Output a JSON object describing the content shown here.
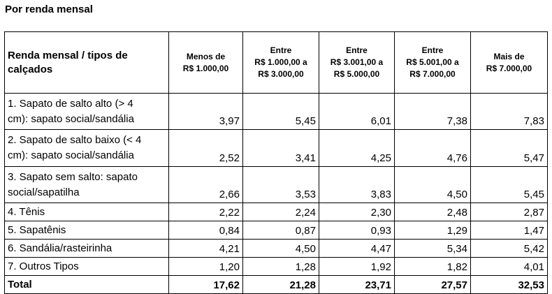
{
  "page_title": "Por renda mensal",
  "table": {
    "corner_header": [
      "Renda mensal / tipos de",
      "calçados"
    ],
    "column_headers": [
      [
        "Menos de",
        "R$ 1.000,00"
      ],
      [
        "Entre",
        "R$ 1.000,00 a",
        "R$ 3.000,00"
      ],
      [
        "Entre",
        "R$ 3.001,00 a",
        "R$ 5.000,00"
      ],
      [
        "Entre",
        "R$ 5.001,00 a",
        "R$ 7.000,00"
      ],
      [
        "Mais de",
        "R$ 7.000,00"
      ]
    ],
    "rows": [
      {
        "label": [
          "1. Sapato de salto alto (> 4",
          "cm): sapato social/sandália"
        ],
        "values": [
          "3,97",
          "5,45",
          "6,01",
          "7,38",
          "7,83"
        ]
      },
      {
        "label": [
          "2. Sapato de salto baixo (< 4",
          "cm): sapato social/sandália"
        ],
        "values": [
          "2,52",
          "3,41",
          "4,25",
          "4,76",
          "5,47"
        ]
      },
      {
        "label": [
          "3. Sapato sem salto: sapato",
          "social/sapatilha"
        ],
        "values": [
          "2,66",
          "3,53",
          "3,83",
          "4,50",
          "5,45"
        ]
      },
      {
        "label": [
          "4. Tênis"
        ],
        "values": [
          "2,22",
          "2,24",
          "2,30",
          "2,48",
          "2,87"
        ]
      },
      {
        "label": [
          "5. Sapatênis"
        ],
        "values": [
          "0,84",
          "0,87",
          "0,93",
          "1,29",
          "1,47"
        ]
      },
      {
        "label": [
          "6. Sandália/rasteirinha"
        ],
        "values": [
          "4,21",
          "4,50",
          "4,47",
          "5,34",
          "5,42"
        ]
      },
      {
        "label": [
          "7. Outros Tipos"
        ],
        "values": [
          "1,20",
          "1,28",
          "1,92",
          "1,82",
          "4,01"
        ]
      }
    ],
    "total_row": {
      "label": "Total",
      "values": [
        "17,62",
        "21,28",
        "23,71",
        "27,57",
        "32,53"
      ]
    }
  }
}
